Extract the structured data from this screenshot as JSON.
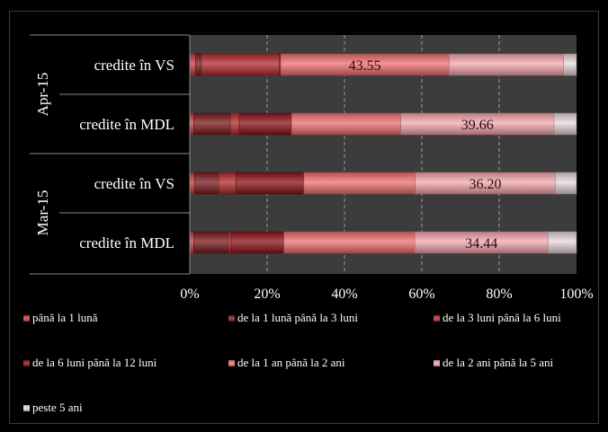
{
  "chart_data": {
    "type": "bar",
    "orientation": "horizontal",
    "stacked": "percent",
    "xlim": [
      0,
      100
    ],
    "x_ticks": [
      "0%",
      "20%",
      "40%",
      "60%",
      "80%",
      "100%"
    ],
    "grid": "vertical dashed",
    "groups": [
      {
        "label": "Apr-15",
        "categories": [
          "credite în VS",
          "credite în MDL"
        ]
      },
      {
        "label": "Mar-15",
        "categories": [
          "credite în VS",
          "credite în MDL"
        ]
      }
    ],
    "categories": [
      "credite în VS",
      "credite în MDL",
      "credite în VS",
      "credite în MDL"
    ],
    "series": [
      {
        "name": "până la 1 lună",
        "color": "#c83c3c",
        "values": [
          1.5,
          1.0,
          1.2,
          1.0
        ]
      },
      {
        "name": "de la 1 lună până la 3 luni",
        "color": "#7a1a1e",
        "values": [
          1.5,
          9.5,
          6.3,
          9.0
        ]
      },
      {
        "name": "de la 3 luni până la 6 luni",
        "color": "#b42a2e",
        "values": [
          20.2,
          2.3,
          4.5,
          0.7
        ]
      },
      {
        "name": "de la 6 luni până la 12 luni",
        "color": "#8c1218",
        "values": [
          0.3,
          13.5,
          17.5,
          13.6
        ]
      },
      {
        "name": "de la 1 an până la 2 ani",
        "color": "#f07070",
        "values": [
          43.55,
          28.24,
          28.8,
          33.9
        ]
      },
      {
        "name": "de la 2 ani până la 5 ani",
        "color": "#f6a8ae",
        "values": [
          29.6,
          39.66,
          36.2,
          34.44
        ]
      },
      {
        "name": "peste 5 ani",
        "color": "#e8d8dc",
        "values": [
          3.35,
          5.8,
          5.5,
          7.36
        ]
      }
    ],
    "data_labels": [
      {
        "category_index": 0,
        "series_index": 4,
        "text": "43.55"
      },
      {
        "category_index": 1,
        "series_index": 5,
        "text": "39.66"
      },
      {
        "category_index": 2,
        "series_index": 5,
        "text": "36.20"
      },
      {
        "category_index": 3,
        "series_index": 5,
        "text": "34.44"
      }
    ],
    "legend_placement": "bottom"
  }
}
